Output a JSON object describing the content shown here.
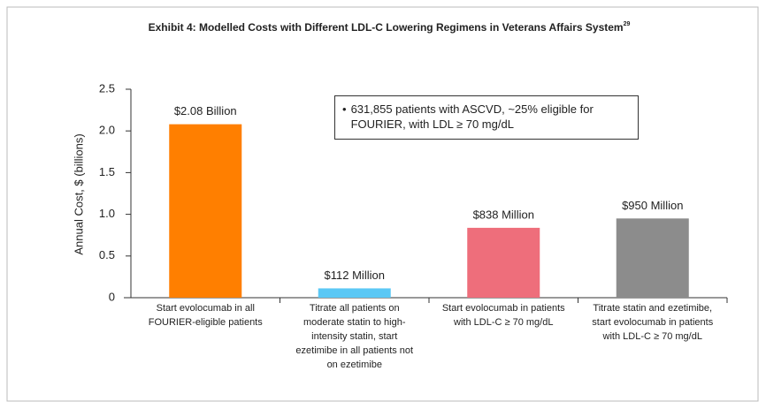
{
  "chart_data": {
    "type": "bar",
    "title": "Exhibit 4: Modelled Costs with Different LDL-C Lowering Regimens in Veterans Affairs System",
    "title_superscript": "29",
    "ylabel": "Annual Cost, $ (billions)",
    "categories": [
      "Start evolocumab in all FOURIER-eligible patients",
      "Titrate all patients on moderate statin to high-intensity statin, start ezetimibe in all patients not on ezetimibe",
      "Start evolocumab in patients with LDL-C ≥ 70 mg/dL",
      "Titrate statin and ezetimibe, start evolocumab in patients with LDL-C ≥ 70 mg/dL"
    ],
    "values": [
      2.08,
      0.112,
      0.838,
      0.95
    ],
    "value_labels": [
      "$2.08 Billion",
      "$112 Million",
      "$838 Million",
      "$950 Million"
    ],
    "colors": [
      "#ff7f00",
      "#5bc8f5",
      "#ee6e7b",
      "#8c8c8c"
    ],
    "ylim": [
      0,
      2.5
    ],
    "yticks": [
      0,
      0.5,
      {
        "value": 1,
        "label": "1.0"
      },
      1.5,
      {
        "value": 2,
        "label": "2.0"
      },
      2.5
    ],
    "annotation": "631,855 patients with ASCVD, ~25% eligible for FOURIER, with LDL ≥ 70 mg/dL",
    "grid": false
  }
}
